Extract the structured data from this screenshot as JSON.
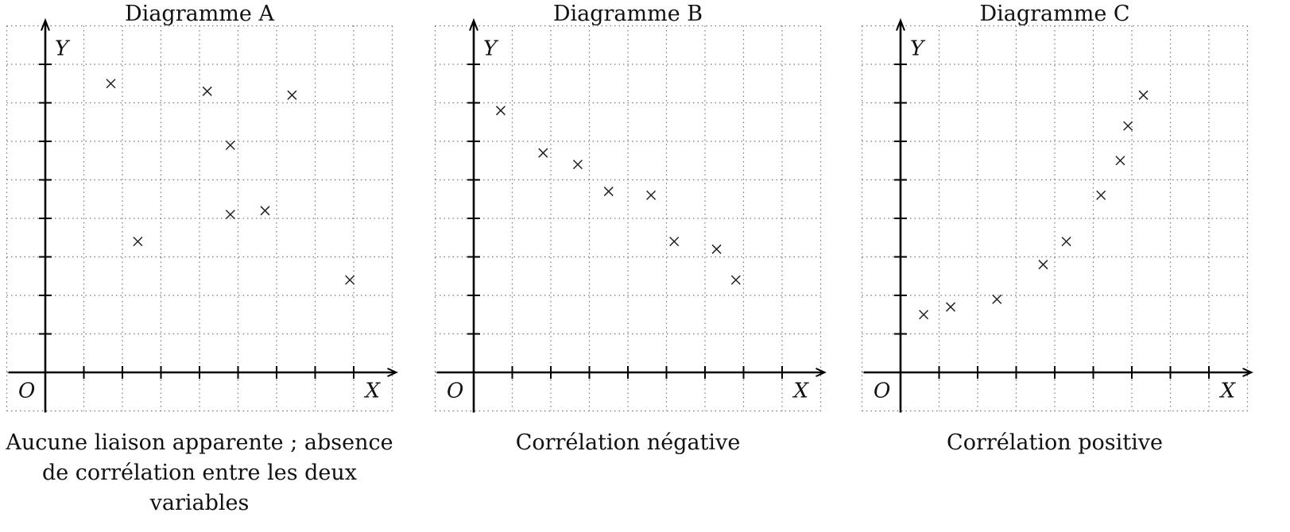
{
  "chart_data": [
    {
      "type": "scatter",
      "title": "Diagramme A",
      "xlabel": "X",
      "ylabel": "Y",
      "origin_label": "O",
      "caption_lines": [
        "Aucune liaison apparente ; absence",
        "de corrélation entre les deux",
        "variables"
      ],
      "xlim": [
        -1,
        9
      ],
      "ylim": [
        -1,
        9
      ],
      "grid": true,
      "points": [
        {
          "x": 1.7,
          "y": 7.5
        },
        {
          "x": 2.4,
          "y": 3.4
        },
        {
          "x": 4.2,
          "y": 7.3
        },
        {
          "x": 4.8,
          "y": 5.9
        },
        {
          "x": 4.8,
          "y": 4.1
        },
        {
          "x": 5.7,
          "y": 4.2
        },
        {
          "x": 6.4,
          "y": 7.2
        },
        {
          "x": 7.9,
          "y": 2.4
        }
      ]
    },
    {
      "type": "scatter",
      "title": "Diagramme B",
      "xlabel": "X",
      "ylabel": "Y",
      "origin_label": "O",
      "caption_lines": [
        "Corrélation négative"
      ],
      "xlim": [
        -1,
        9
      ],
      "ylim": [
        -1,
        9
      ],
      "grid": true,
      "points": [
        {
          "x": 0.7,
          "y": 6.8
        },
        {
          "x": 1.8,
          "y": 5.7
        },
        {
          "x": 2.7,
          "y": 5.4
        },
        {
          "x": 3.5,
          "y": 4.7
        },
        {
          "x": 4.6,
          "y": 4.6
        },
        {
          "x": 5.2,
          "y": 3.4
        },
        {
          "x": 6.3,
          "y": 3.2
        },
        {
          "x": 6.8,
          "y": 2.4
        }
      ]
    },
    {
      "type": "scatter",
      "title": "Diagramme C",
      "xlabel": "X",
      "ylabel": "Y",
      "origin_label": "O",
      "caption_lines": [
        "Corrélation positive"
      ],
      "xlim": [
        -1,
        9
      ],
      "ylim": [
        -1,
        9
      ],
      "grid": true,
      "points": [
        {
          "x": 0.6,
          "y": 1.5
        },
        {
          "x": 1.3,
          "y": 1.7
        },
        {
          "x": 2.5,
          "y": 1.9
        },
        {
          "x": 3.7,
          "y": 2.8
        },
        {
          "x": 4.3,
          "y": 3.4
        },
        {
          "x": 5.2,
          "y": 4.6
        },
        {
          "x": 5.7,
          "y": 5.5
        },
        {
          "x": 5.9,
          "y": 6.4
        },
        {
          "x": 6.3,
          "y": 7.2
        }
      ]
    }
  ]
}
